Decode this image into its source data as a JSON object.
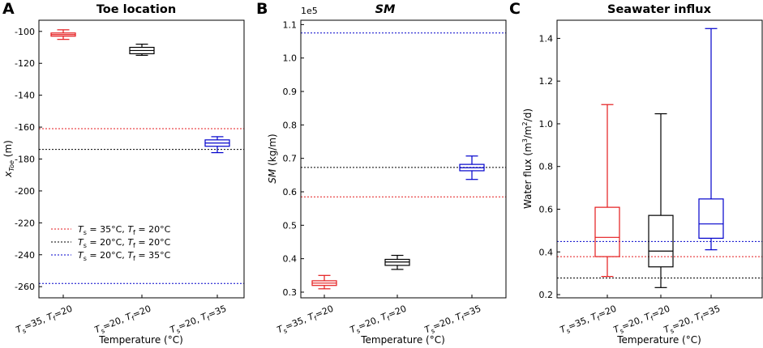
{
  "chart_data": [
    {
      "panel_label": "A",
      "type": "box",
      "title": "Toe location",
      "xlabel": "Temperature (°C)",
      "ylabel_main": "x",
      "ylabel_sub": "Toe",
      "ylabel_unit": " (m)",
      "ylim": [
        -267,
        -93
      ],
      "yticks": [
        -100,
        -120,
        -140,
        -160,
        -180,
        -200,
        -220,
        -240,
        -260
      ],
      "ytick_labels": [
        "-100",
        "-120",
        "-140",
        "-160",
        "-180",
        "-200",
        "-220",
        "-240",
        "-260"
      ],
      "categories": [
        {
          "ts": "35",
          "tf": "20"
        },
        {
          "ts": "20",
          "tf": "20"
        },
        {
          "ts": "20",
          "tf": "35"
        }
      ],
      "boxes": [
        {
          "color": "#e41a1c",
          "whislo": -105,
          "q1": -103,
          "med": -102,
          "q3": -101,
          "whishi": -99
        },
        {
          "color": "#000000",
          "whislo": -115,
          "q1": -114,
          "med": -112,
          "q3": -110,
          "whishi": -108
        },
        {
          "color": "#0000cc",
          "whislo": -176,
          "q1": -172,
          "med": -170,
          "q3": -168,
          "whishi": -166
        }
      ],
      "hlines": [
        {
          "value": -161,
          "color": "#e41a1c"
        },
        {
          "value": -174,
          "color": "#000000"
        },
        {
          "value": -258,
          "color": "#0000cc"
        }
      ],
      "legend": [
        {
          "ts": "35",
          "tf": "20",
          "color": "#e41a1c"
        },
        {
          "ts": "20",
          "tf": "20",
          "color": "#000000"
        },
        {
          "ts": "20",
          "tf": "35",
          "color": "#0000cc"
        }
      ]
    },
    {
      "panel_label": "B",
      "type": "box",
      "title": "SM",
      "offset_text": "1e5",
      "xlabel": "Temperature (°C)",
      "ylabel_main": "SM",
      "ylabel_unit": " (kg/m)",
      "ylim": [
        0.283,
        1.113
      ],
      "yticks": [
        0.3,
        0.4,
        0.5,
        0.6,
        0.7,
        0.8,
        0.9,
        1.0,
        1.1
      ],
      "ytick_labels": [
        "0.3",
        "0.4",
        "0.5",
        "0.6",
        "0.7",
        "0.8",
        "0.9",
        "1.0",
        "1.1"
      ],
      "categories": [
        {
          "ts": "35",
          "tf": "20"
        },
        {
          "ts": "20",
          "tf": "20"
        },
        {
          "ts": "20",
          "tf": "35"
        }
      ],
      "boxes": [
        {
          "color": "#e41a1c",
          "whislo": 0.31,
          "q1": 0.32,
          "med": 0.327,
          "q3": 0.334,
          "whishi": 0.35
        },
        {
          "color": "#000000",
          "whislo": 0.368,
          "q1": 0.38,
          "med": 0.39,
          "q3": 0.398,
          "whishi": 0.41
        },
        {
          "color": "#0000cc",
          "whislo": 0.637,
          "q1": 0.663,
          "med": 0.672,
          "q3": 0.682,
          "whishi": 0.707
        }
      ],
      "hlines": [
        {
          "value": 1.075,
          "color": "#0000cc"
        },
        {
          "value": 0.673,
          "color": "#000000"
        },
        {
          "value": 0.585,
          "color": "#e41a1c"
        }
      ]
    },
    {
      "panel_label": "C",
      "type": "box",
      "title": "Seawater influx",
      "xlabel": "Temperature (°C)",
      "ylabel_main": "Water flux (m",
      "ylabel_sup1": "3",
      "ylabel_mid": "/m",
      "ylabel_sup2": "2",
      "ylabel_end": "/d)",
      "ylim": [
        0.185,
        1.485
      ],
      "yticks": [
        0.2,
        0.4,
        0.6,
        0.8,
        1.0,
        1.2,
        1.4
      ],
      "ytick_labels": [
        "0.2",
        "0.4",
        "0.6",
        "0.8",
        "1.0",
        "1.2",
        "1.4"
      ],
      "categories": [
        {
          "ts": "35",
          "tf": "20"
        },
        {
          "ts": "20",
          "tf": "20"
        },
        {
          "ts": "20",
          "tf": "35"
        }
      ],
      "boxes": [
        {
          "color": "#e41a1c",
          "whislo": 0.285,
          "q1": 0.378,
          "med": 0.468,
          "q3": 0.609,
          "whishi": 1.09
        },
        {
          "color": "#000000",
          "whislo": 0.233,
          "q1": 0.33,
          "med": 0.404,
          "q3": 0.571,
          "whishi": 1.047
        },
        {
          "color": "#0000cc",
          "whislo": 0.41,
          "q1": 0.464,
          "med": 0.531,
          "q3": 0.648,
          "whishi": 1.446
        }
      ],
      "hlines": [
        {
          "value": 0.449,
          "color": "#0000cc"
        },
        {
          "value": 0.378,
          "color": "#e41a1c"
        },
        {
          "value": 0.278,
          "color": "#000000"
        }
      ]
    }
  ]
}
